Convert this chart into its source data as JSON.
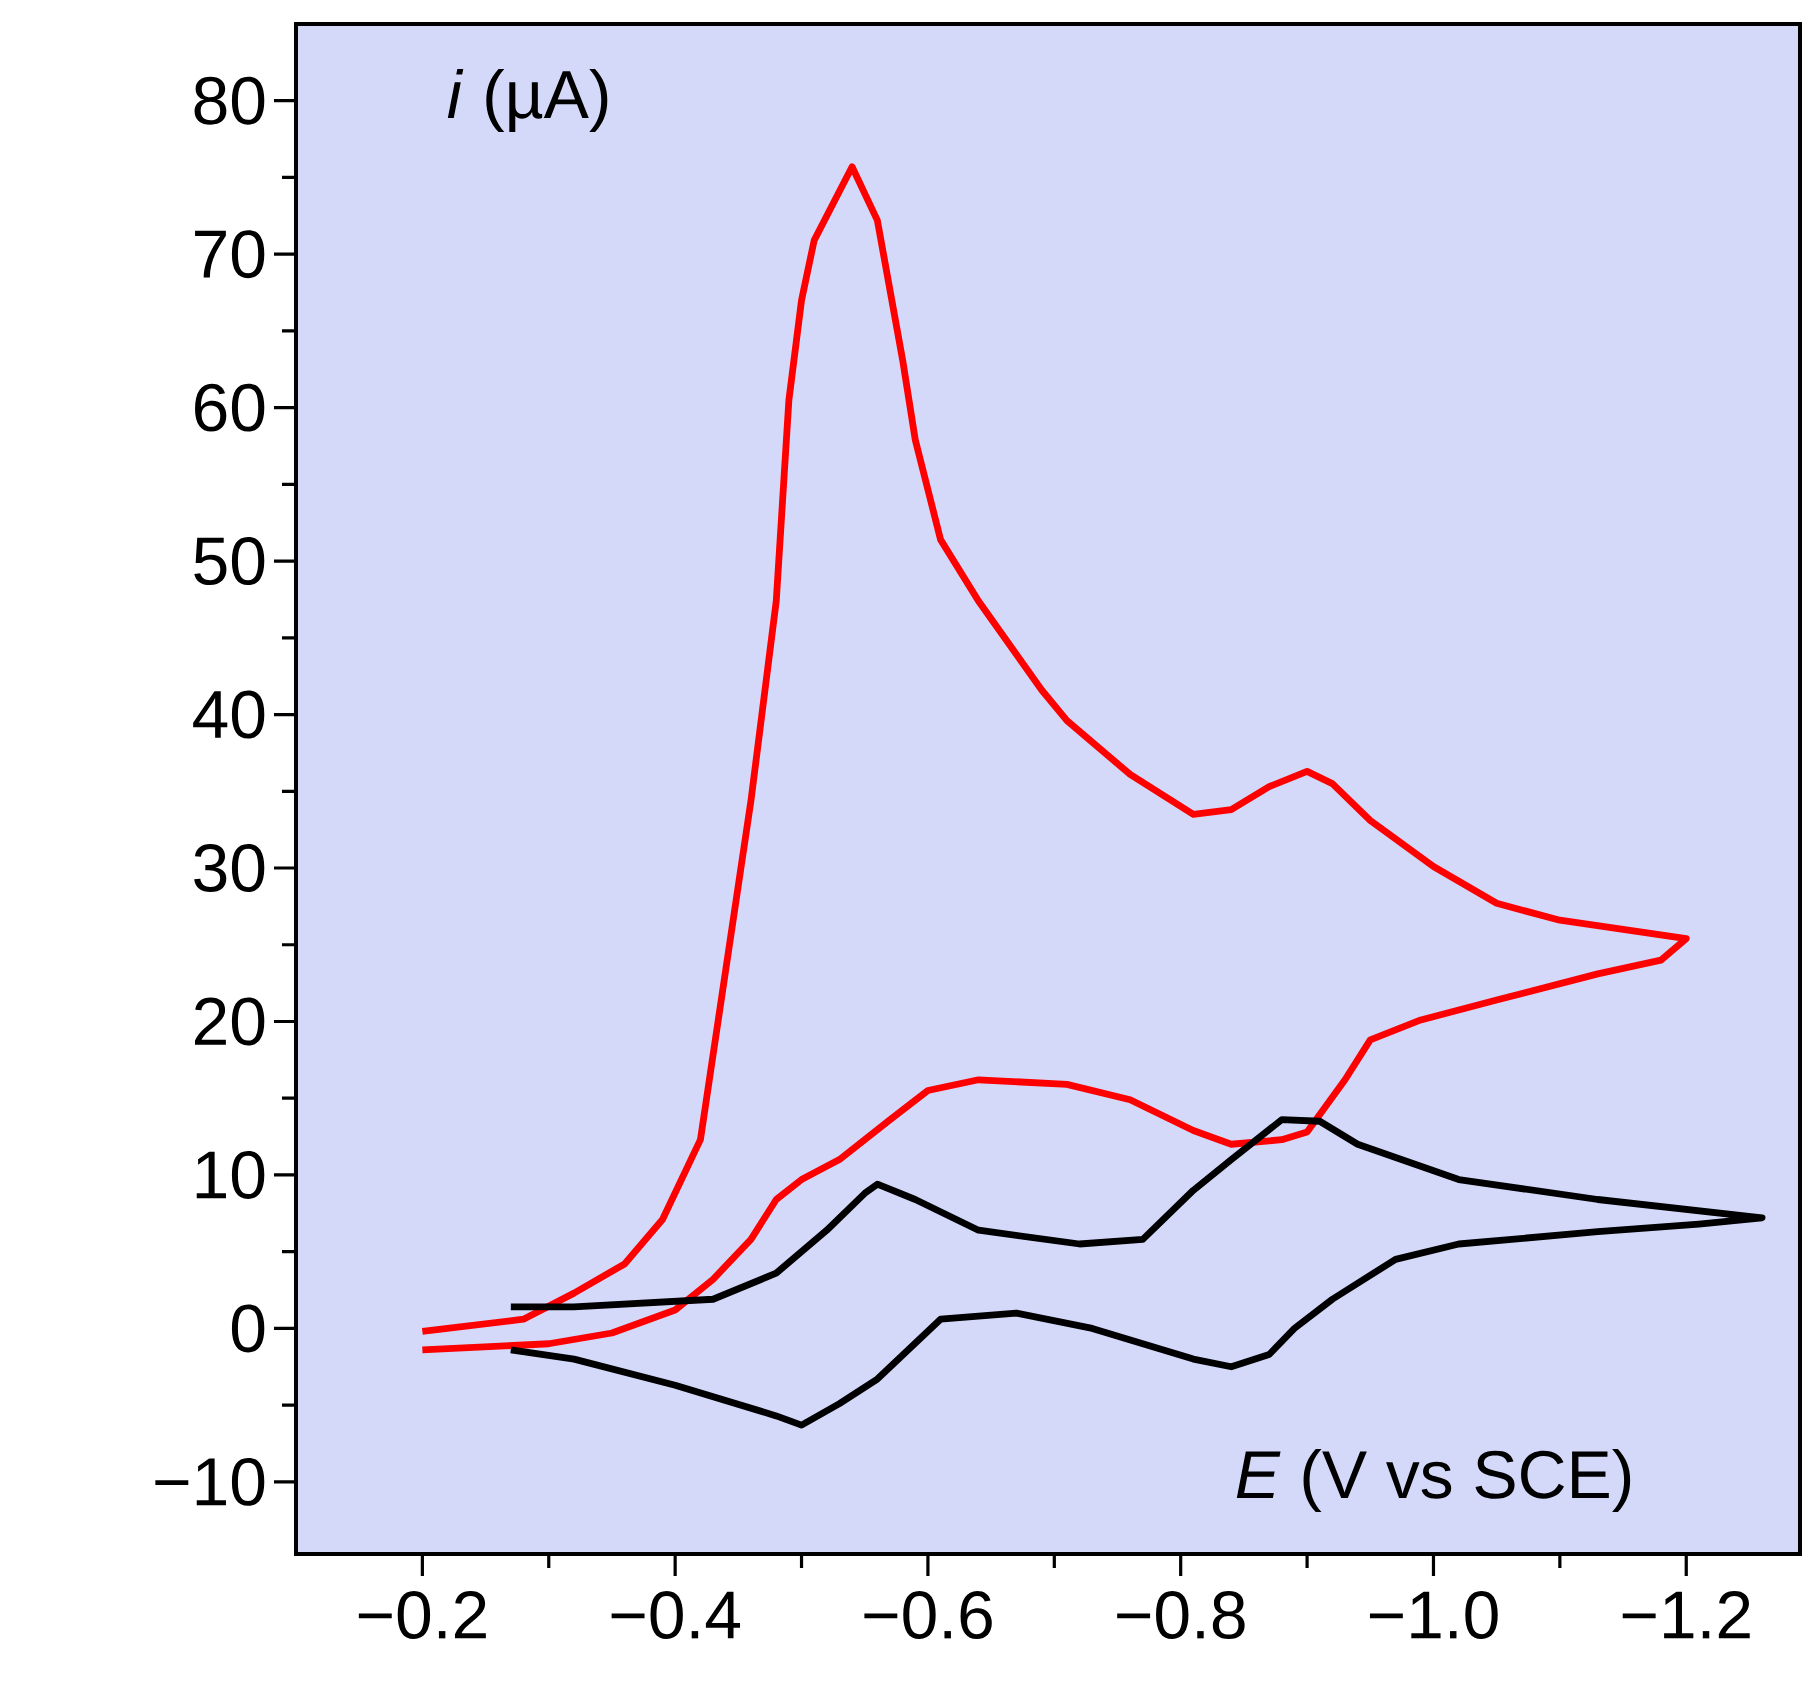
{
  "chart_data": {
    "type": "line",
    "xlabel": "*E* (V vs SCE)",
    "ylabel": "*i* (µA)",
    "marker": "none",
    "line_style": "solid",
    "xlim": [
      -0.1,
      -1.29
    ],
    "ylim": [
      -14.7,
      85
    ],
    "xticks": [
      {
        "value": -0.2,
        "label": "−0.2"
      },
      {
        "value": -0.3,
        "label": null
      },
      {
        "value": -0.4,
        "label": "−0.4"
      },
      {
        "value": -0.5,
        "label": null
      },
      {
        "value": -0.6,
        "label": "−0.6"
      },
      {
        "value": -0.7,
        "label": null
      },
      {
        "value": -0.8,
        "label": "−0.8"
      },
      {
        "value": -0.9,
        "label": null
      },
      {
        "value": -1.0,
        "label": "−1.0"
      },
      {
        "value": -1.1,
        "label": null
      },
      {
        "value": -1.2,
        "label": "−1.2"
      }
    ],
    "yticks": [
      {
        "value": -10,
        "label": "−10"
      },
      {
        "value": -5,
        "label": null
      },
      0,
      {
        "value": 5,
        "label": null
      },
      10,
      {
        "value": 15,
        "label": null
      },
      20,
      {
        "value": 25,
        "label": null
      },
      30,
      {
        "value": 35,
        "label": null
      },
      40,
      {
        "value": 45,
        "label": null
      },
      50,
      {
        "value": 55,
        "label": null
      },
      60,
      {
        "value": 65,
        "label": null
      },
      70,
      {
        "value": 75,
        "label": null
      },
      80
    ],
    "series": [
      {
        "color": "#ff0000",
        "x": [
          -0.2,
          -0.28,
          -0.32,
          -0.36,
          -0.39,
          -0.42,
          -0.46,
          -0.48,
          -0.49,
          -0.5,
          -0.51,
          -0.54,
          -0.56,
          -0.58,
          -0.59,
          -0.61,
          -0.64,
          -0.69,
          -0.71,
          -0.76,
          -0.81,
          -0.84,
          -0.87,
          -0.9,
          -0.92,
          -0.95,
          -1.0,
          -1.05,
          -1.1,
          -1.15,
          -1.2,
          -1.18,
          -1.13,
          -1.05,
          -0.99,
          -0.95,
          -0.93,
          -0.9,
          -0.88,
          -0.84,
          -0.81,
          -0.76,
          -0.71,
          -0.64,
          -0.6,
          -0.57,
          -0.53,
          -0.5,
          -0.48,
          -0.46,
          -0.43,
          -0.4,
          -0.35,
          -0.3,
          -0.2
        ],
        "values": [
          -0.2,
          0.6,
          2.3,
          4.2,
          7.1,
          12.3,
          34.4,
          47.4,
          60.5,
          67,
          70.9,
          75.7,
          72.2,
          63.1,
          57.9,
          51.4,
          47.4,
          41.6,
          39.6,
          36.1,
          33.5,
          33.8,
          35.3,
          36.3,
          35.5,
          33.1,
          30.1,
          27.7,
          26.6,
          26,
          25.4,
          24,
          23.1,
          21.4,
          20.1,
          18.8,
          16.2,
          12.8,
          12.3,
          12,
          12.9,
          14.9,
          15.9,
          16.2,
          15.5,
          13.6,
          11,
          9.7,
          8.4,
          5.8,
          3.2,
          1.2,
          -0.3,
          -1,
          -1.4
        ]
      },
      {
        "color": "#000000",
        "x": [
          -0.27,
          -0.32,
          -0.43,
          -0.48,
          -0.52,
          -0.55,
          -0.56,
          -0.59,
          -0.64,
          -0.72,
          -0.77,
          -0.81,
          -0.84,
          -0.88,
          -0.91,
          -0.94,
          -1.02,
          -1.13,
          -1.26,
          -1.21,
          -1.13,
          -1.02,
          -0.97,
          -0.92,
          -0.89,
          -0.87,
          -0.84,
          -0.81,
          -0.73,
          -0.67,
          -0.61,
          -0.56,
          -0.53,
          -0.5,
          -0.48,
          -0.4,
          -0.32,
          -0.27
        ],
        "values": [
          1.4,
          1.4,
          1.9,
          3.6,
          6.4,
          8.8,
          9.4,
          8.4,
          6.4,
          5.5,
          5.8,
          9,
          11,
          13.6,
          13.5,
          12,
          9.7,
          8.4,
          7.2,
          6.8,
          6.3,
          5.5,
          4.5,
          1.9,
          0,
          -1.7,
          -2.5,
          -2,
          0,
          1,
          0.6,
          -3.3,
          -4.9,
          -6.3,
          -5.7,
          -3.7,
          -2,
          -1.4
        ]
      }
    ]
  }
}
